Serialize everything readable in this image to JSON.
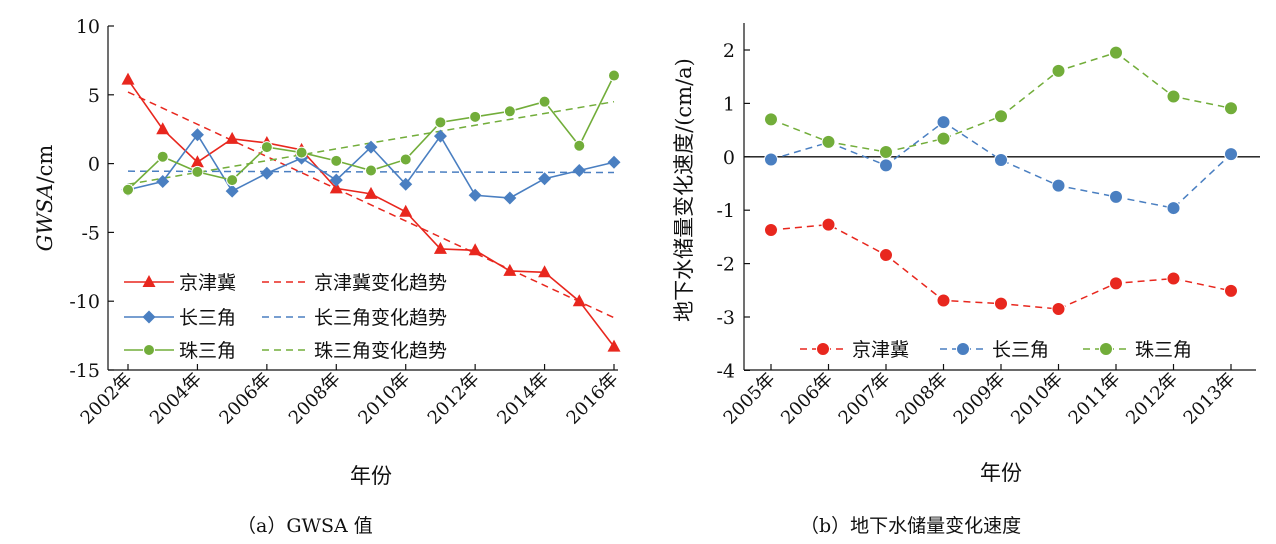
{
  "chart_data": [
    {
      "panel": "a",
      "type": "line",
      "caption": "（a）GWSA 值",
      "ylabel_italic": "GWSA",
      "ylabel_unit": "/cm",
      "xlabel": "年份",
      "ylim": [
        -15,
        10
      ],
      "yticks": [
        10,
        5,
        0,
        -5,
        -10,
        -15
      ],
      "xticks": [
        "2002年",
        "2004年",
        "2006年",
        "2008年",
        "2010年",
        "2012年",
        "2014年",
        "2016年"
      ],
      "xtick_values": [
        2002,
        2004,
        2006,
        2008,
        2010,
        2012,
        2014,
        2016
      ],
      "x": [
        2002,
        2003,
        2004,
        2005,
        2006,
        2007,
        2008,
        2009,
        2010,
        2011,
        2012,
        2013,
        2014,
        2015,
        2016
      ],
      "legend_position": "bottom-left",
      "series": [
        {
          "name": "京津冀",
          "color": "#e8271e",
          "marker": "triangle",
          "values": [
            6.1,
            2.5,
            0.1,
            1.8,
            1.5,
            1.0,
            -1.8,
            -2.2,
            -3.5,
            -6.2,
            -6.3,
            -7.8,
            -7.9,
            -10.0,
            -13.3
          ]
        },
        {
          "name": "长三角",
          "color": "#4a7fc1",
          "marker": "diamond",
          "values": [
            -1.9,
            -1.3,
            2.1,
            -2.0,
            -0.7,
            0.4,
            -1.2,
            1.2,
            -1.5,
            2.0,
            -2.3,
            -2.5,
            -1.1,
            -0.5,
            0.1
          ]
        },
        {
          "name": "珠三角",
          "color": "#72ad3a",
          "marker": "circle",
          "values": [
            -1.9,
            0.5,
            -0.6,
            -1.2,
            1.2,
            0.8,
            0.2,
            -0.5,
            0.3,
            3.0,
            3.4,
            3.8,
            4.5,
            1.3,
            6.4
          ]
        }
      ],
      "trends": [
        {
          "name": "京津冀变化趋势",
          "color": "#e8271e",
          "start": 5.2,
          "end": -11.2
        },
        {
          "name": "长三角变化趋势",
          "color": "#4a7fc1",
          "start": -0.55,
          "end": -0.65
        },
        {
          "name": "珠三角变化趋势",
          "color": "#72ad3a",
          "start": -1.5,
          "end": 4.5
        }
      ]
    },
    {
      "panel": "b",
      "type": "line",
      "caption": "（b）地下水储量变化速度",
      "ylabel": "地下水储量变化速度/(cm/a)",
      "xlabel": "年份",
      "ylim": [
        -4,
        2.5
      ],
      "yticks": [
        2,
        1,
        0,
        -1,
        -2,
        -3,
        -4
      ],
      "categories": [
        "2005年",
        "2006年",
        "2007年",
        "2008年",
        "2009年",
        "2010年",
        "2011年",
        "2012年",
        "2013年"
      ],
      "zero_line": true,
      "legend_position": "bottom",
      "series": [
        {
          "name": "京津冀",
          "color": "#e8271e",
          "values": [
            -1.37,
            -1.27,
            -1.84,
            -2.69,
            -2.75,
            -2.85,
            -2.37,
            -2.28,
            -2.51
          ]
        },
        {
          "name": "长三角",
          "color": "#4a7fc1",
          "values": [
            -0.05,
            0.27,
            -0.16,
            0.65,
            -0.06,
            -0.54,
            -0.75,
            -0.96,
            0.05
          ]
        },
        {
          "name": "珠三角",
          "color": "#72ad3a",
          "values": [
            0.7,
            0.28,
            0.09,
            0.34,
            0.76,
            1.61,
            1.95,
            1.13,
            0.91
          ]
        }
      ]
    }
  ]
}
